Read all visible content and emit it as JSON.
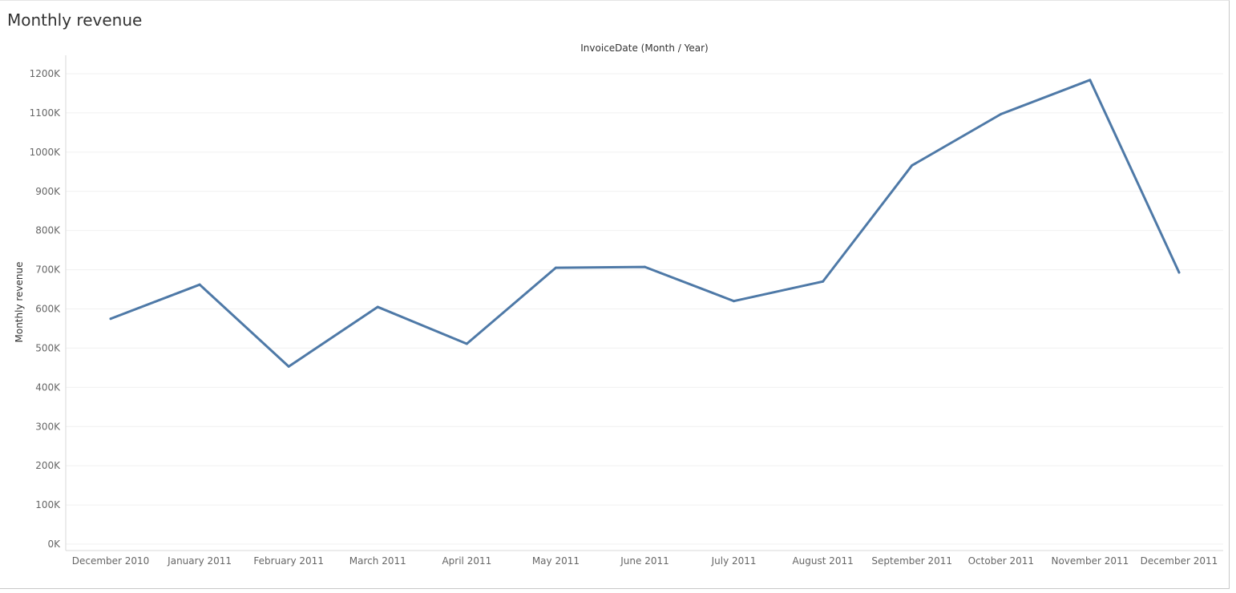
{
  "sheet": {
    "title": "Monthly revenue"
  },
  "colors": {
    "line": "#4e79a7",
    "grid": "#f0f0f0",
    "axis": "#d9d9d9"
  },
  "chart_data": {
    "type": "line",
    "title": "Monthly revenue",
    "top_axis_title": "InvoiceDate (Month / Year)",
    "xlabel": "",
    "ylabel": "Monthly revenue",
    "categories": [
      "December 2010",
      "January 2011",
      "February 2011",
      "March 2011",
      "April 2011",
      "May 2011",
      "June 2011",
      "July 2011",
      "August 2011",
      "September 2011",
      "October 2011",
      "November 2011",
      "December 2011"
    ],
    "series": [
      {
        "values": [
          575000,
          662000,
          453000,
          605000,
          511000,
          705000,
          707000,
          620000,
          670000,
          966000,
          1097000,
          1184000,
          693000
        ]
      }
    ],
    "ylim": [
      0,
      1200000
    ],
    "yticks": [
      0,
      100000,
      200000,
      300000,
      400000,
      500000,
      600000,
      700000,
      800000,
      900000,
      1000000,
      1100000,
      1200000
    ],
    "ytick_labels": [
      "0K",
      "100K",
      "200K",
      "300K",
      "400K",
      "500K",
      "600K",
      "700K",
      "800K",
      "900K",
      "1000K",
      "1100K",
      "1200K"
    ],
    "grid": true,
    "legend": "none"
  }
}
